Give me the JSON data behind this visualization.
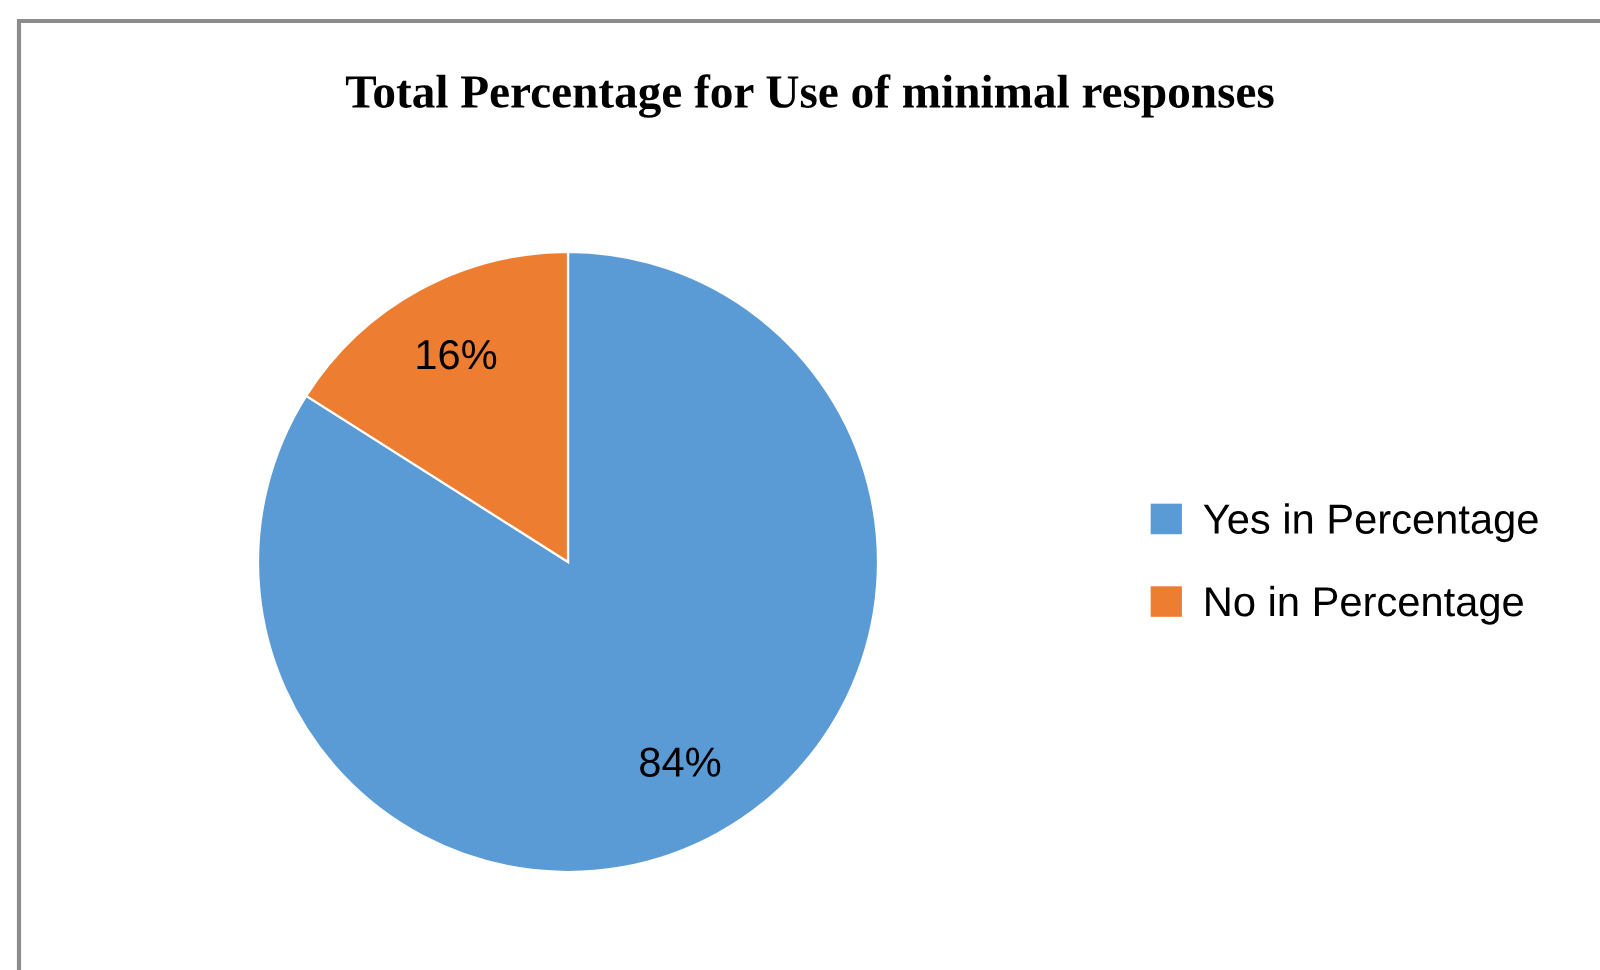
{
  "chart_data": {
    "type": "pie",
    "title": "Total Percentage for Use of minimal responses",
    "categories": [
      "Yes in Percentage",
      "No in Percentage"
    ],
    "values": [
      84,
      16
    ],
    "colors": [
      "#5b9bd5",
      "#ed7d31"
    ],
    "value_labels": [
      "84%",
      "16%"
    ],
    "legend": "right"
  }
}
